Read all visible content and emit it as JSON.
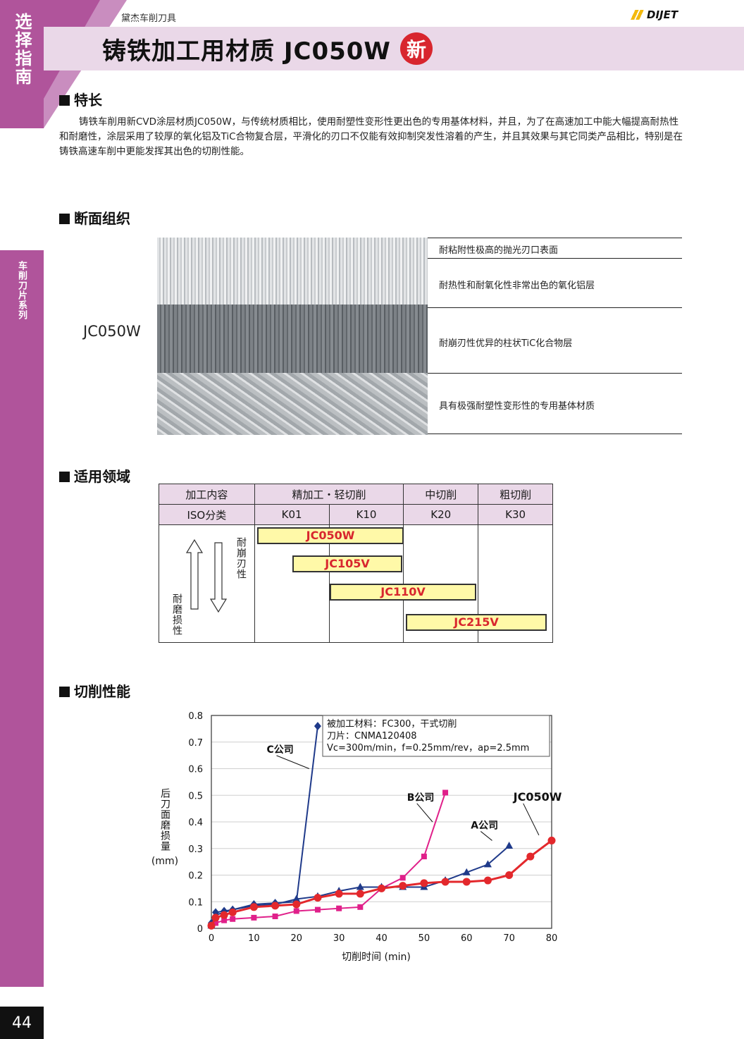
{
  "side_tab_top": "选择指南",
  "side_tab_mid": "车削刀片系列",
  "page_number": "44",
  "header": {
    "category": "黛杰车削刀具",
    "title": "铸铁加工用材质 JC050W",
    "new_badge": "新",
    "logo": "DIJET"
  },
  "features": {
    "heading": "特长",
    "text": "铸铁车削用新CVD涂层材质JC050W，与传统材质相比，使用耐塑性变形性更出色的专用基体材料，并且，为了在高速加工中能大幅提高耐热性和耐磨性，涂层采用了较厚的氧化铝及TiC合物复合层，平滑化的刃口不仅能有效抑制突发性溶着的产生，并且其效果与其它同类产品相比，特别是在铸铁高速车削中更能发挥其出色的切削性能。"
  },
  "cross_section": {
    "heading": "断面组织",
    "grade_label": "JC050W",
    "layers": [
      "耐粘附性极高的抛光刃口表面",
      "耐热性和耐氧化性非常出色的氧化铝层",
      "耐崩刃性优异的柱状TiC化合物层",
      "具有极强耐塑性变形性的专用基体材质"
    ]
  },
  "application": {
    "heading": "适用领域",
    "row1": [
      "加工内容",
      "精加工・轻切削",
      "中切削",
      "粗切削"
    ],
    "row2": [
      "ISO分类",
      "K01",
      "K10",
      "K20",
      "K30"
    ],
    "up_label": "耐崩刃性",
    "down_label": "耐磨损性",
    "grades": [
      "JC050W",
      "JC105V",
      "JC110V",
      "JC215V"
    ]
  },
  "performance": {
    "heading": "切削性能",
    "conditions": [
      "被加工材料：FC300，干式切削",
      "刀片：CNMA120408",
      "Vc=300m/min，f=0.25mm/rev，ap=2.5mm"
    ]
  },
  "chart_data": {
    "type": "line",
    "xlabel": "切削时间 (min)",
    "ylabel": "后刀面磨损量",
    "yunit": "(mm)",
    "xlim": [
      0,
      80
    ],
    "ylim": [
      0,
      0.8
    ],
    "xticks": [
      0,
      10,
      20,
      30,
      40,
      50,
      60,
      70,
      80
    ],
    "yticks": [
      0,
      0.1,
      0.2,
      0.3,
      0.4,
      0.5,
      0.6,
      0.7,
      0.8
    ],
    "legend": "in-plot labels",
    "series": [
      {
        "name": "C公司",
        "color": "#1f3a8a",
        "marker": "diamond",
        "x": [
          0,
          1,
          3,
          5,
          10,
          15,
          20,
          25
        ],
        "y": [
          0.02,
          0.06,
          0.065,
          0.07,
          0.09,
          0.095,
          0.1,
          0.76
        ]
      },
      {
        "name": "B公司",
        "color": "#e0208a",
        "marker": "square",
        "x": [
          0,
          1,
          3,
          5,
          10,
          15,
          20,
          25,
          30,
          35,
          40,
          45,
          50,
          55
        ],
        "y": [
          0.01,
          0.02,
          0.03,
          0.035,
          0.04,
          0.045,
          0.065,
          0.07,
          0.075,
          0.08,
          0.15,
          0.19,
          0.27,
          0.51
        ]
      },
      {
        "name": "A公司",
        "color": "#1f3a8a",
        "marker": "triangle",
        "x": [
          0,
          1,
          3,
          5,
          10,
          15,
          20,
          25,
          30,
          35,
          40,
          45,
          50,
          55,
          60,
          65,
          70
        ],
        "y": [
          0.01,
          0.05,
          0.06,
          0.07,
          0.085,
          0.09,
          0.11,
          0.12,
          0.14,
          0.155,
          0.155,
          0.155,
          0.155,
          0.18,
          0.21,
          0.24,
          0.31
        ]
      },
      {
        "name": "JC050W",
        "color": "#e3282c",
        "marker": "circle",
        "x": [
          0,
          1,
          3,
          5,
          10,
          15,
          20,
          25,
          30,
          35,
          40,
          45,
          50,
          55,
          60,
          65,
          70,
          75,
          80
        ],
        "y": [
          0.01,
          0.04,
          0.05,
          0.06,
          0.08,
          0.085,
          0.09,
          0.115,
          0.13,
          0.13,
          0.15,
          0.16,
          0.17,
          0.175,
          0.175,
          0.18,
          0.2,
          0.27,
          0.33
        ]
      }
    ]
  }
}
